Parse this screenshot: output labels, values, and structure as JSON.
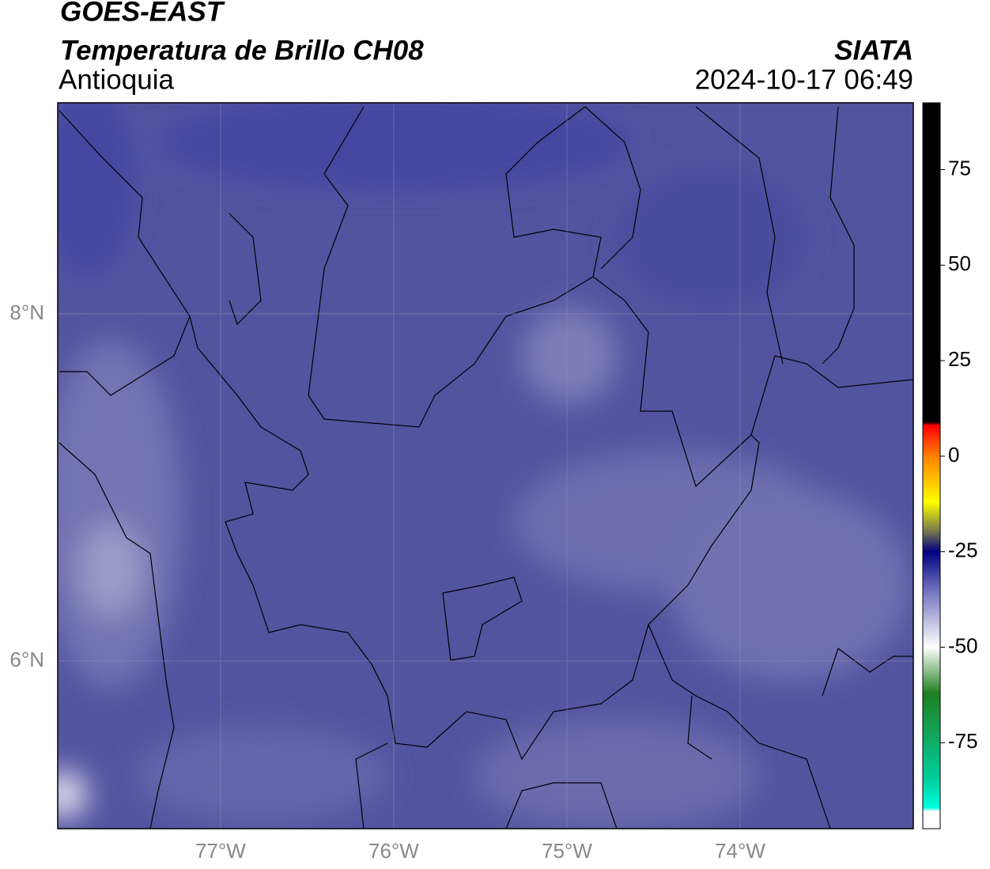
{
  "header": {
    "satellite": "GOES-EAST",
    "product": "Temperatura de Brillo CH08",
    "region": "Antioquia",
    "source": "SIATA",
    "datetime": "2024-10-17 06:49"
  },
  "map": {
    "xlim": [
      -77.94,
      -73.0
    ],
    "ylim": [
      5.034,
      9.216
    ],
    "xticks": [
      {
        "value": -77,
        "label": "77°W"
      },
      {
        "value": -76,
        "label": "76°W"
      },
      {
        "value": -75,
        "label": "75°W"
      },
      {
        "value": -74,
        "label": "74°W"
      }
    ],
    "yticks": [
      {
        "value": 8,
        "label": "8°N"
      },
      {
        "value": 6,
        "label": "6°N"
      }
    ],
    "grid": true,
    "grid_color": "#8a8ab0"
  },
  "colorbar": {
    "lim": [
      -97.5,
      92.5
    ],
    "ticks": [
      75,
      50,
      25,
      0,
      -25,
      -50,
      -75
    ],
    "colormap": [
      {
        "value": 92.5,
        "color": "#000000"
      },
      {
        "value": 9,
        "color": "#000000"
      },
      {
        "value": 8,
        "color": "#ff0000"
      },
      {
        "value": 0,
        "color": "#ff8000"
      },
      {
        "value": -12,
        "color": "#ffff00"
      },
      {
        "value": -20,
        "color": "#707050"
      },
      {
        "value": -25,
        "color": "#000080"
      },
      {
        "value": -35,
        "color": "#7070c0"
      },
      {
        "value": -50,
        "color": "#ffffff"
      },
      {
        "value": -62,
        "color": "#208020"
      },
      {
        "value": -85,
        "color": "#00d0a0"
      },
      {
        "value": -92,
        "color": "#00ffe0"
      },
      {
        "value": -93,
        "color": "#ffffff"
      },
      {
        "value": -97.5,
        "color": "#ffffff"
      }
    ]
  }
}
